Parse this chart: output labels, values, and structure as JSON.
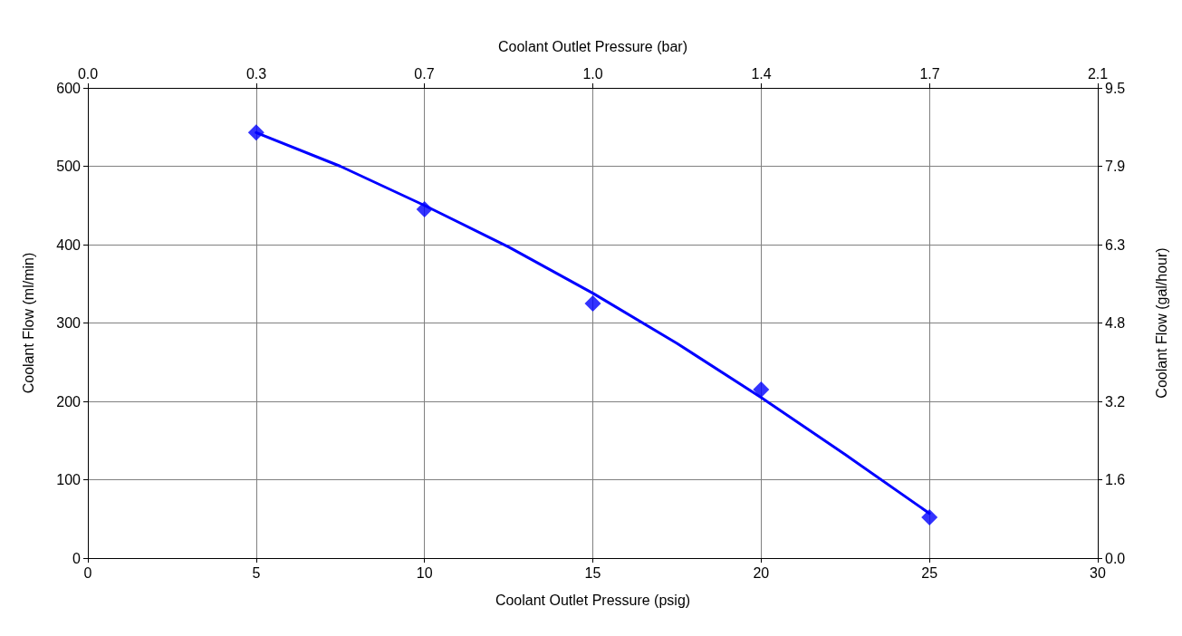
{
  "chart_data": {
    "type": "scatter",
    "xlabel": "Coolant Outlet Pressure (psig)",
    "x2label": "Coolant Outlet Pressure (bar)",
    "ylabel": "Coolant Flow (ml/min)",
    "y2label": "Coolant Flow (gal/hour)",
    "xlim": [
      0,
      30
    ],
    "xticks": [
      0,
      5,
      10,
      15,
      20,
      25,
      30
    ],
    "x2lim": [
      0,
      2.068
    ],
    "x2ticks": [
      {
        "value": 0,
        "label": "0.0"
      },
      {
        "value": 0.345,
        "label": "0.3"
      },
      {
        "value": 0.689,
        "label": "0.7"
      },
      {
        "value": 1.034,
        "label": "1.0"
      },
      {
        "value": 1.379,
        "label": "1.4"
      },
      {
        "value": 1.724,
        "label": "1.7"
      },
      {
        "value": 2.068,
        "label": "2.1"
      }
    ],
    "ylim": [
      0,
      600
    ],
    "yticks": [
      0,
      100,
      200,
      300,
      400,
      500,
      600
    ],
    "y2lim": [
      0,
      9.51
    ],
    "y2ticks": [
      {
        "value": 0,
        "label": "0.0"
      },
      {
        "value": 1.585,
        "label": "1.6"
      },
      {
        "value": 3.17,
        "label": "3.2"
      },
      {
        "value": 4.755,
        "label": "4.8"
      },
      {
        "value": 6.34,
        "label": "6.3"
      },
      {
        "value": 7.925,
        "label": "7.9"
      },
      {
        "value": 9.51,
        "label": "9.5"
      }
    ],
    "grid": true,
    "series": [
      {
        "type": "line",
        "color": "#0000ff",
        "marker": "none",
        "x": [
          5,
          7.5,
          10,
          12.5,
          15,
          17.5,
          20,
          22.5,
          25
        ],
        "values": [
          543,
          500,
          450,
          397,
          338,
          274,
          205,
          132,
          57
        ]
      },
      {
        "color": "#0000ff",
        "marker": "diamond",
        "x": [
          5,
          10,
          15,
          20,
          25
        ],
        "values": [
          543,
          445,
          325,
          215,
          52
        ]
      }
    ]
  }
}
